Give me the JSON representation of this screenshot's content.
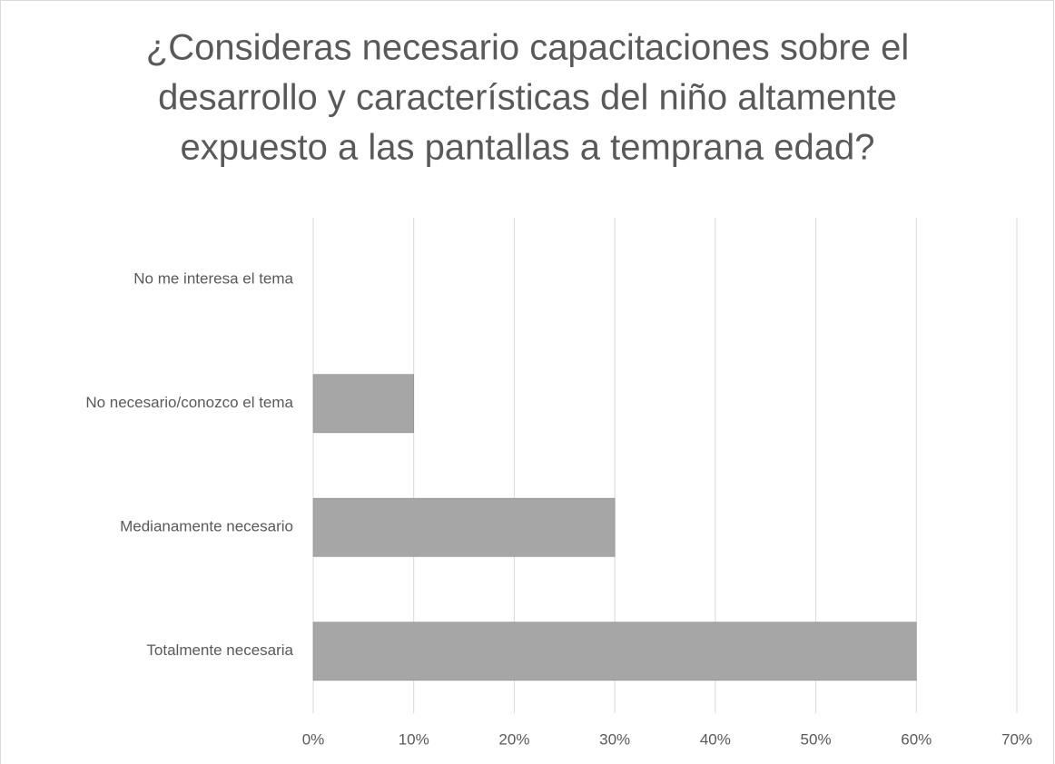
{
  "chart_data": {
    "type": "bar",
    "orientation": "horizontal",
    "title": [
      "¿Consideras necesario capacitaciones sobre el",
      "desarrollo y características del niño altamente",
      "expuesto a las pantallas a temprana edad?"
    ],
    "categories": [
      "No me interesa el tema",
      "No necesario/conozco el tema",
      "Medianamente necesario",
      "Totalmente necesaria"
    ],
    "values": [
      0,
      10,
      30,
      60
    ],
    "color": "#a6a6a6",
    "xlim": [
      0,
      70
    ],
    "xticks": [
      {
        "value": 0,
        "label": "0%"
      },
      {
        "value": 10,
        "label": "10%"
      },
      {
        "value": 20,
        "label": "20%"
      },
      {
        "value": 30,
        "label": "30%"
      },
      {
        "value": 40,
        "label": "40%"
      },
      {
        "value": 50,
        "label": "50%"
      },
      {
        "value": 60,
        "label": "60%"
      },
      {
        "value": 70,
        "label": "70%"
      }
    ],
    "grid": true
  }
}
